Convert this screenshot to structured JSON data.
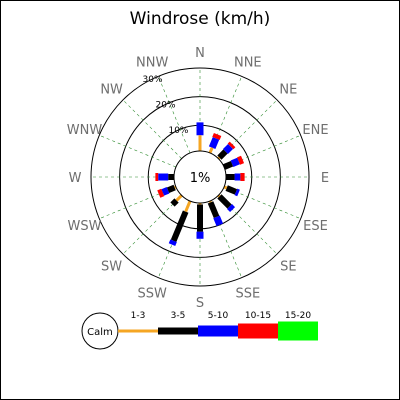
{
  "chart_data": {
    "type": "windrose",
    "title": "Windrose (km/h)",
    "unit": "km/h",
    "directions": [
      "N",
      "NNE",
      "NE",
      "ENE",
      "E",
      "ESE",
      "SE",
      "SSE",
      "S",
      "SSW",
      "SW",
      "WSW",
      "W",
      "WNW",
      "NW",
      "NNW"
    ],
    "radial_ticks": [
      "10%",
      "20%",
      "30%"
    ],
    "radial_tick_values": [
      10,
      20,
      30
    ],
    "r_max": 30,
    "calm_label": "1%",
    "calm_percent": 1,
    "calm_legend_label": "Calm",
    "grid": true,
    "legend_position": "bottom",
    "speed_bins": [
      {
        "label": "1-3",
        "color": "#f5a623"
      },
      {
        "label": "3-5",
        "color": "#000000"
      },
      {
        "label": "5-10",
        "color": "#0000ff"
      },
      {
        "label": "10-15",
        "color": "#ff0000"
      },
      {
        "label": "15-20",
        "color": "#00ff00"
      }
    ],
    "series_cumulative_percent": {
      "N": [
        6.5,
        6.5,
        11,
        11,
        11
      ],
      "NNE": [
        3,
        3,
        6.5,
        8,
        8
      ],
      "NE": [
        1.5,
        4.5,
        7,
        8,
        8
      ],
      "ENE": [
        1,
        4,
        6.5,
        8,
        8
      ],
      "E": [
        1,
        4,
        6,
        7.5,
        7.5
      ],
      "ESE": [
        2,
        5.5,
        6.5,
        6.5,
        6.5
      ],
      "SE": [
        1.5,
        6.5,
        8,
        8,
        8
      ],
      "SSE": [
        1.5,
        7,
        10,
        10,
        10
      ],
      "S": [
        1.5,
        11,
        13.5,
        13.5,
        13.5
      ],
      "SSW": [
        5,
        16,
        17.5,
        17.5,
        17.5
      ],
      "SW": [
        3.5,
        5.5,
        5.5,
        5.5,
        5.5
      ],
      "WSW": [
        1.5,
        4,
        6,
        7.5,
        7.5
      ],
      "W": [
        1,
        3,
        6.5,
        7.5,
        7.5
      ],
      "WNW": [
        1,
        1,
        1,
        1,
        1
      ],
      "NW": [
        1,
        1,
        1,
        1,
        1
      ],
      "NNW": [
        1,
        1,
        1,
        1,
        1
      ]
    }
  }
}
